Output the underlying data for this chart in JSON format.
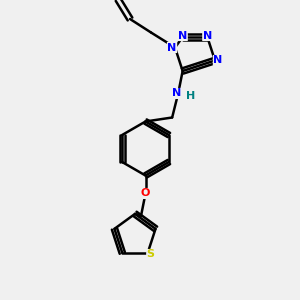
{
  "bg_color": "#f0f0f0",
  "bond_color": "#000000",
  "bond_width": 1.8,
  "atom_colors": {
    "N": "#0000ff",
    "O": "#ff0000",
    "S": "#cccc00",
    "H": "#008080",
    "C": "#000000"
  },
  "font_size": 8,
  "fig_width": 3.0,
  "fig_height": 3.0,
  "dpi": 100,
  "xlim": [
    0,
    10
  ],
  "ylim": [
    0,
    10
  ]
}
